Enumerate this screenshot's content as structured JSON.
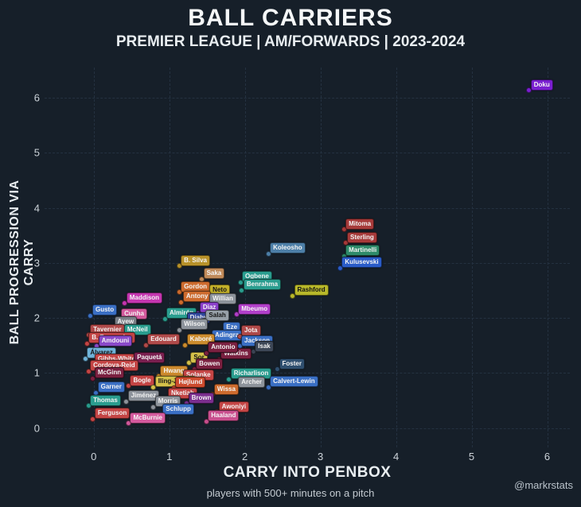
{
  "page": {
    "background": "#161f29"
  },
  "chart_data": {
    "type": "scatter",
    "title": "BALL CARRIERS",
    "subtitle": "PREMIER LEAGUE | AM/FORWARDS | 2023-2024",
    "xlabel": "CARRY INTO PENBOX",
    "ylabel": "BALL PROGRESSION VIA CARRY",
    "footer": "players with 500+ minutes on a pitch",
    "watermark": "@markrstats",
    "xlim": [
      -0.65,
      6.3
    ],
    "ylim": [
      -0.35,
      6.55
    ],
    "xticks": [
      0,
      1,
      2,
      3,
      4,
      5,
      6
    ],
    "yticks": [
      0,
      1,
      2,
      3,
      4,
      5,
      6
    ],
    "grid": "dashed",
    "grid_color": "#243140",
    "players": [
      {
        "name": "Doku",
        "x": 5.75,
        "y": 6.15,
        "color": "#7a1fd0"
      },
      {
        "name": "Mitoma",
        "x": 3.3,
        "y": 3.62,
        "color": "#a63a3a"
      },
      {
        "name": "Sterling",
        "x": 3.32,
        "y": 3.38,
        "color": "#a63a3a"
      },
      {
        "name": "Koleosho",
        "x": 2.3,
        "y": 3.18,
        "color": "#4d7fa8"
      },
      {
        "name": "Martinelli",
        "x": 3.3,
        "y": 3.14,
        "color": "#2e8b6a"
      },
      {
        "name": "Kulusevski",
        "x": 3.25,
        "y": 2.92,
        "color": "#2a5cc8"
      },
      {
        "name": "B. Silva",
        "x": 1.12,
        "y": 2.96,
        "color": "#b8922a"
      },
      {
        "name": "Saka",
        "x": 1.42,
        "y": 2.72,
        "color": "#c08a5a"
      },
      {
        "name": "Ogbene",
        "x": 1.93,
        "y": 2.66,
        "color": "#2a9d8f"
      },
      {
        "name": "Benrahma",
        "x": 1.95,
        "y": 2.52,
        "color": "#2a9d8f"
      },
      {
        "name": "Gordon",
        "x": 1.12,
        "y": 2.48,
        "color": "#cd6b2e"
      },
      {
        "name": "Neto",
        "x": 1.5,
        "y": 2.42,
        "color": "#c2b02a"
      },
      {
        "name": "Rashford",
        "x": 2.62,
        "y": 2.42,
        "color": "#b8b82a"
      },
      {
        "name": "Antony",
        "x": 1.15,
        "y": 2.3,
        "color": "#cd6b2e"
      },
      {
        "name": "Willian",
        "x": 1.5,
        "y": 2.26,
        "color": "#8d939b"
      },
      {
        "name": "Maddison",
        "x": 0.4,
        "y": 2.28,
        "color": "#c436b0"
      },
      {
        "name": "Diaz",
        "x": 1.37,
        "y": 2.1,
        "color": "#8a3fc9"
      },
      {
        "name": "Mbeumo",
        "x": 1.88,
        "y": 2.08,
        "color": "#b13fc9"
      },
      {
        "name": "Gusto",
        "x": -0.05,
        "y": 2.06,
        "color": "#3a6fc4"
      },
      {
        "name": "Cunha",
        "x": 0.33,
        "y": 1.99,
        "color": "#d45a9e"
      },
      {
        "name": "Almirón",
        "x": 0.93,
        "y": 2.0,
        "color": "#2a9d8f"
      },
      {
        "name": "Diaby",
        "x": 1.2,
        "y": 1.92,
        "color": "#31489e"
      },
      {
        "name": "Salah",
        "x": 1.45,
        "y": 1.96,
        "color": "#97a0a8"
      },
      {
        "name": "Ayew",
        "x": 0.24,
        "y": 1.84,
        "color": "#7a7f87"
      },
      {
        "name": "Wilson",
        "x": 1.12,
        "y": 1.8,
        "color": "#8d939b"
      },
      {
        "name": "Eze",
        "x": 1.68,
        "y": 1.74,
        "color": "#3a6fc4"
      },
      {
        "name": "Tavernier",
        "x": -0.08,
        "y": 1.7,
        "color": "#b04a4a"
      },
      {
        "name": "McNeil",
        "x": 0.37,
        "y": 1.7,
        "color": "#2a9d8f"
      },
      {
        "name": "B. Fernandes",
        "x": -0.1,
        "y": 1.55,
        "color": "#c44545"
      },
      {
        "name": "Adingra",
        "x": 1.53,
        "y": 1.6,
        "color": "#3a6fc4"
      },
      {
        "name": "Jota",
        "x": 1.92,
        "y": 1.68,
        "color": "#b04a4a"
      },
      {
        "name": "Amdouni",
        "x": 0.03,
        "y": 1.5,
        "color": "#8a4ac9"
      },
      {
        "name": "Jackson",
        "x": 1.92,
        "y": 1.5,
        "color": "#3a6fc4"
      },
      {
        "name": "Edouard",
        "x": 0.68,
        "y": 1.52,
        "color": "#b04a4a"
      },
      {
        "name": "Kaboré",
        "x": 1.2,
        "y": 1.52,
        "color": "#cc8c2e"
      },
      {
        "name": "Isak",
        "x": 2.1,
        "y": 1.4,
        "color": "#3c4656"
      },
      {
        "name": "Álvarez",
        "x": -0.12,
        "y": 1.28,
        "color": "#6fb3d9"
      },
      {
        "name": "Gibbs-White",
        "x": -0.02,
        "y": 1.16,
        "color": "#c44545"
      },
      {
        "name": "Paquetá",
        "x": 0.5,
        "y": 1.2,
        "color": "#7a2050"
      },
      {
        "name": "Sor",
        "x": 1.25,
        "y": 1.2,
        "color": "#d4c14a"
      },
      {
        "name": "Watkins",
        "x": 1.65,
        "y": 1.26,
        "color": "#7a2040"
      },
      {
        "name": "Antonio",
        "x": 1.48,
        "y": 1.38,
        "color": "#7a2040"
      },
      {
        "name": "Bowen",
        "x": 1.32,
        "y": 1.08,
        "color": "#7a2040"
      },
      {
        "name": "Foster",
        "x": 2.42,
        "y": 1.08,
        "color": "#2f4f6f"
      },
      {
        "name": "Cordova-Reid",
        "x": -0.08,
        "y": 1.05,
        "color": "#c44545"
      },
      {
        "name": "McGinn",
        "x": -0.02,
        "y": 0.92,
        "color": "#7a2040"
      },
      {
        "name": "Hwang",
        "x": 0.85,
        "y": 0.95,
        "color": "#cd8a2e"
      },
      {
        "name": "Solanke",
        "x": 1.15,
        "y": 0.88,
        "color": "#c44545"
      },
      {
        "name": "Richarlison",
        "x": 1.78,
        "y": 0.9,
        "color": "#2a9d8f"
      },
      {
        "name": "Archer",
        "x": 1.88,
        "y": 0.74,
        "color": "#8d939b"
      },
      {
        "name": "Calvert-Lewin",
        "x": 2.3,
        "y": 0.76,
        "color": "#3a6fc4"
      },
      {
        "name": "Garner",
        "x": 0.02,
        "y": 0.66,
        "color": "#3a6fc4"
      },
      {
        "name": "Bogle",
        "x": 0.45,
        "y": 0.78,
        "color": "#c44545"
      },
      {
        "name": "Iling-Junior",
        "x": 0.78,
        "y": 0.76,
        "color": "#d4c14a"
      },
      {
        "name": "Højlund",
        "x": 1.05,
        "y": 0.74,
        "color": "#cd4b2e"
      },
      {
        "name": "Wissa",
        "x": 1.56,
        "y": 0.62,
        "color": "#cd6b2e"
      },
      {
        "name": "Nketiah",
        "x": 0.95,
        "y": 0.55,
        "color": "#c44545"
      },
      {
        "name": "Jiménez",
        "x": 0.42,
        "y": 0.5,
        "color": "#8d939b"
      },
      {
        "name": "Brown",
        "x": 1.22,
        "y": 0.46,
        "color": "#7a2e8e"
      },
      {
        "name": "Morris",
        "x": 0.78,
        "y": 0.4,
        "color": "#8d939b"
      },
      {
        "name": "Thomas",
        "x": -0.08,
        "y": 0.42,
        "color": "#2a9d8f"
      },
      {
        "name": "Schlupp",
        "x": 0.88,
        "y": 0.26,
        "color": "#3a6fc4"
      },
      {
        "name": "Awoniyi",
        "x": 1.62,
        "y": 0.3,
        "color": "#c44545"
      },
      {
        "name": "Ferguson",
        "x": -0.02,
        "y": 0.18,
        "color": "#c44545"
      },
      {
        "name": "McBurnie",
        "x": 0.45,
        "y": 0.1,
        "color": "#d45a9e"
      },
      {
        "name": "Haaland",
        "x": 1.48,
        "y": 0.14,
        "color": "#c94f8e"
      }
    ]
  }
}
